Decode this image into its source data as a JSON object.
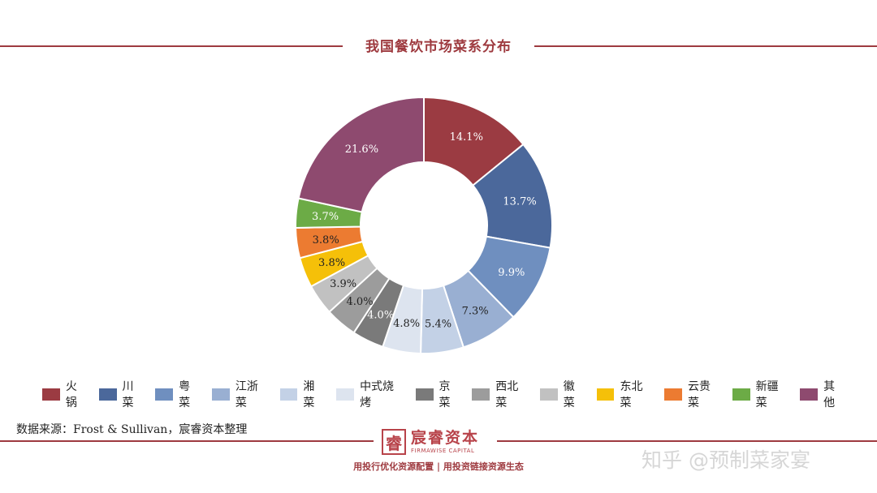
{
  "header": {
    "title": "我国餐饮市场菜系分布"
  },
  "chart_data": {
    "type": "pie",
    "donut": true,
    "title": "我国餐饮市场菜系分布",
    "categories": [
      "火锅",
      "川菜",
      "粤菜",
      "江浙菜",
      "湘菜",
      "中式烧烤",
      "京菜",
      "西北菜",
      "徽菜",
      "东北菜",
      "云贵菜",
      "新疆菜",
      "其他"
    ],
    "values": [
      14.1,
      13.7,
      9.9,
      7.3,
      5.4,
      4.8,
      4.0,
      4.0,
      3.9,
      3.8,
      3.8,
      3.7,
      21.6
    ],
    "labels": [
      "14.1%",
      "13.7%",
      "9.9%",
      "7.3%",
      "5.4%",
      "4.8%",
      "4.0%",
      "4.0%",
      "3.9%",
      "3.8%",
      "3.8%",
      "3.7%",
      "21.6%"
    ],
    "colors": [
      "#9b3b42",
      "#4b689b",
      "#6f8fbf",
      "#99afd2",
      "#c3d1e6",
      "#dde4ef",
      "#7a7a7a",
      "#9c9c9c",
      "#c1c1c1",
      "#f5c009",
      "#ec7b31",
      "#6cab46",
      "#8e4a6f"
    ],
    "label_colors": [
      "#ffffff",
      "#ffffff",
      "#ffffff",
      "#222222",
      "#222222",
      "#222222",
      "#ffffff",
      "#222222",
      "#222222",
      "#222222",
      "#222222",
      "#ffffff",
      "#ffffff"
    ],
    "legend_position": "bottom"
  },
  "source": "数据来源：Frost & Sullivan，宸睿资本整理",
  "logo": {
    "mark": "睿",
    "name": "宸睿资本",
    "english": "FIRMAWISE CAPITAL"
  },
  "slogan": "用投行优化资源配置 | 用投资链接资源生态",
  "watermark": "知乎 @预制菜家宴"
}
